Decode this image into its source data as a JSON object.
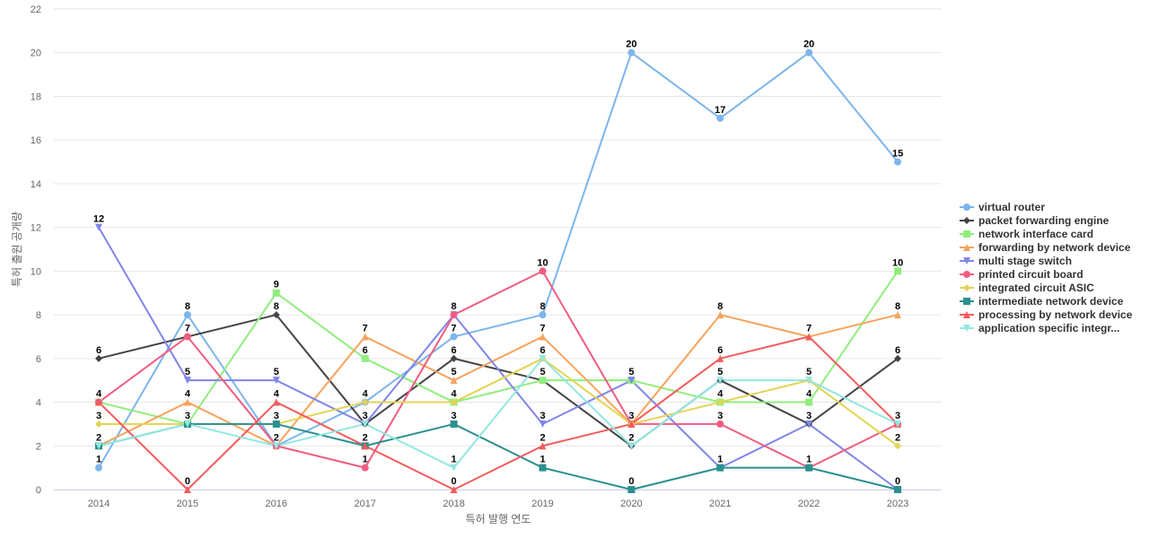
{
  "chart_data": {
    "type": "line",
    "xlabel": "특허 발행 연도",
    "ylabel": "특허 출원 공개량",
    "x": [
      "2014",
      "2015",
      "2016",
      "2017",
      "2018",
      "2019",
      "2020",
      "2021",
      "2022",
      "2023"
    ],
    "ylim": [
      0,
      22
    ],
    "yticks": [
      0,
      2,
      4,
      6,
      8,
      10,
      12,
      14,
      16,
      18,
      20,
      22
    ],
    "grid": true,
    "legend_position": "right",
    "series": [
      {
        "name": "virtual router",
        "color": "#7cb5ec",
        "marker": "circle",
        "values": [
          1,
          8,
          2,
          4,
          7,
          8,
          20,
          17,
          20,
          15
        ]
      },
      {
        "name": "packet forwarding engine",
        "color": "#434348",
        "marker": "diamond",
        "values": [
          6,
          7,
          8,
          3,
          6,
          5,
          2,
          5,
          3,
          6
        ]
      },
      {
        "name": "network interface card",
        "color": "#90ed7d",
        "marker": "square",
        "values": [
          4,
          3,
          9,
          6,
          4,
          5,
          5,
          4,
          4,
          10
        ]
      },
      {
        "name": "forwarding by network device",
        "color": "#f7a35c",
        "marker": "triangle",
        "values": [
          2,
          4,
          2,
          7,
          5,
          7,
          3,
          8,
          7,
          8
        ]
      },
      {
        "name": "multi stage switch",
        "color": "#8085e9",
        "marker": "triangle-down",
        "values": [
          12,
          5,
          5,
          3,
          8,
          3,
          5,
          1,
          3,
          0
        ]
      },
      {
        "name": "printed circuit board",
        "color": "#f15c80",
        "marker": "circle",
        "values": [
          4,
          7,
          2,
          1,
          8,
          10,
          3,
          3,
          1,
          3
        ]
      },
      {
        "name": "integrated circuit ASIC",
        "color": "#e4d354",
        "marker": "diamond",
        "values": [
          3,
          3,
          3,
          4,
          4,
          6,
          3,
          4,
          5,
          2
        ]
      },
      {
        "name": "intermediate network device",
        "color": "#2b908f",
        "marker": "square",
        "values": [
          2,
          3,
          3,
          2,
          3,
          1,
          0,
          1,
          1,
          0
        ]
      },
      {
        "name": "processing by network device",
        "color": "#f45b5b",
        "marker": "triangle",
        "values": [
          4,
          0,
          4,
          2,
          0,
          2,
          3,
          6,
          7,
          3
        ]
      },
      {
        "name": "application specific integr...",
        "color": "#91e8e1",
        "marker": "triangle-down",
        "values": [
          2,
          3,
          2,
          3,
          1,
          6,
          2,
          5,
          5,
          3
        ]
      }
    ],
    "data_labels": [
      {
        "x": "2014",
        "value": 1
      },
      {
        "x": "2014",
        "value": 2
      },
      {
        "x": "2014",
        "value": 3
      },
      {
        "x": "2014",
        "value": 4
      },
      {
        "x": "2014",
        "value": 6
      },
      {
        "x": "2014",
        "value": 12
      },
      {
        "x": "2015",
        "value": 0
      },
      {
        "x": "2015",
        "value": 3
      },
      {
        "x": "2015",
        "value": 4
      },
      {
        "x": "2015",
        "value": 5
      },
      {
        "x": "2015",
        "value": 7
      },
      {
        "x": "2015",
        "value": 8
      },
      {
        "x": "2016",
        "value": 2
      },
      {
        "x": "2016",
        "value": 3
      },
      {
        "x": "2016",
        "value": 4
      },
      {
        "x": "2016",
        "value": 5
      },
      {
        "x": "2016",
        "value": 8
      },
      {
        "x": "2016",
        "value": 9
      },
      {
        "x": "2017",
        "value": 1
      },
      {
        "x": "2017",
        "value": 2
      },
      {
        "x": "2017",
        "value": 3
      },
      {
        "x": "2017",
        "value": 4
      },
      {
        "x": "2017",
        "value": 6
      },
      {
        "x": "2017",
        "value": 7
      },
      {
        "x": "2018",
        "value": 0
      },
      {
        "x": "2018",
        "value": 1
      },
      {
        "x": "2018",
        "value": 3
      },
      {
        "x": "2018",
        "value": 4
      },
      {
        "x": "2018",
        "value": 5
      },
      {
        "x": "2018",
        "value": 6
      },
      {
        "x": "2018",
        "value": 7
      },
      {
        "x": "2018",
        "value": 8
      },
      {
        "x": "2019",
        "value": 1
      },
      {
        "x": "2019",
        "value": 2
      },
      {
        "x": "2019",
        "value": 3
      },
      {
        "x": "2019",
        "value": 5
      },
      {
        "x": "2019",
        "value": 6
      },
      {
        "x": "2019",
        "value": 7
      },
      {
        "x": "2019",
        "value": 8
      },
      {
        "x": "2019",
        "value": 10
      },
      {
        "x": "2020",
        "value": 0
      },
      {
        "x": "2020",
        "value": 2
      },
      {
        "x": "2020",
        "value": 3
      },
      {
        "x": "2020",
        "value": 5
      },
      {
        "x": "2020",
        "value": 20
      },
      {
        "x": "2021",
        "value": 1
      },
      {
        "x": "2021",
        "value": 3
      },
      {
        "x": "2021",
        "value": 4
      },
      {
        "x": "2021",
        "value": 5
      },
      {
        "x": "2021",
        "value": 6
      },
      {
        "x": "2021",
        "value": 8
      },
      {
        "x": "2021",
        "value": 17
      },
      {
        "x": "2022",
        "value": 1
      },
      {
        "x": "2022",
        "value": 3
      },
      {
        "x": "2022",
        "value": 4
      },
      {
        "x": "2022",
        "value": 5
      },
      {
        "x": "2022",
        "value": 7
      },
      {
        "x": "2022",
        "value": 20
      },
      {
        "x": "2023",
        "value": 0
      },
      {
        "x": "2023",
        "value": 2
      },
      {
        "x": "2023",
        "value": 3
      },
      {
        "x": "2023",
        "value": 6
      },
      {
        "x": "2023",
        "value": 8
      },
      {
        "x": "2023",
        "value": 10
      },
      {
        "x": "2023",
        "value": 15
      }
    ]
  }
}
